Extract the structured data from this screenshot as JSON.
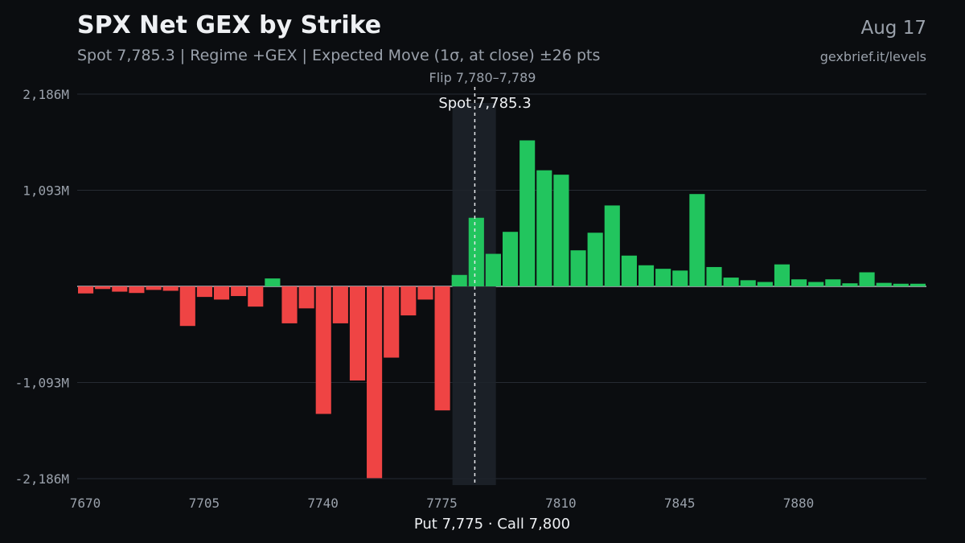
{
  "header": {
    "title": "SPX Net GEX by Strike",
    "subtitle": "Spot 7,785.3 | Regime +GEX | Expected Move (1σ, at close) ±26 pts",
    "date": "Aug 17",
    "source": "gexbrief.it/levels"
  },
  "colors": {
    "background": "#0b0d10",
    "positive": "#22c55e",
    "negative": "#ef4444",
    "grid": "#262b33",
    "text_muted": "#9aa1ab",
    "text_bright": "#eef0f3",
    "flip_band": "#1f252c"
  },
  "chart_data": {
    "type": "bar",
    "units": "M",
    "x_start": 7670,
    "x_step": 5,
    "x": [
      7670,
      7675,
      7680,
      7685,
      7690,
      7695,
      7700,
      7705,
      7710,
      7715,
      7720,
      7725,
      7730,
      7735,
      7740,
      7745,
      7750,
      7755,
      7760,
      7765,
      7770,
      7775,
      7780,
      7785,
      7790,
      7795,
      7800,
      7805,
      7810,
      7815,
      7820,
      7825,
      7830,
      7835,
      7840,
      7845,
      7850,
      7855,
      7860,
      7865,
      7870,
      7875,
      7880,
      7885,
      7890,
      7895,
      7900,
      7905,
      7910,
      7915
    ],
    "values": [
      -80,
      -30,
      -60,
      -75,
      -40,
      -50,
      -450,
      -120,
      -150,
      -110,
      -230,
      90,
      -420,
      -250,
      -1450,
      -420,
      -1070,
      -2180,
      -810,
      -330,
      -150,
      -1410,
      130,
      780,
      370,
      620,
      1660,
      1320,
      1270,
      410,
      610,
      920,
      350,
      240,
      200,
      180,
      1050,
      220,
      100,
      70,
      50,
      250,
      80,
      50,
      80,
      35,
      160,
      40,
      30,
      30
    ],
    "y_ticks": [
      -2186,
      -1093,
      1093,
      2186
    ],
    "y_tick_labels": [
      "-2,186M",
      "-1,093M",
      "1,093M",
      "2,186M"
    ],
    "ylim": [
      -2186,
      2186
    ],
    "x_ticks": [
      7670,
      7705,
      7740,
      7775,
      7810,
      7845,
      7880
    ],
    "x_tick_labels": [
      "7670",
      "7705",
      "7740",
      "7775",
      "7810",
      "7845",
      "7880"
    ],
    "spot": 7785.3,
    "spot_label": "Spot 7,785.3",
    "flip_range": [
      7780,
      7789
    ],
    "flip_label": "Flip 7,780–7,789",
    "xlabel": "Put 7,775 · Call 7,800",
    "grid": true
  }
}
